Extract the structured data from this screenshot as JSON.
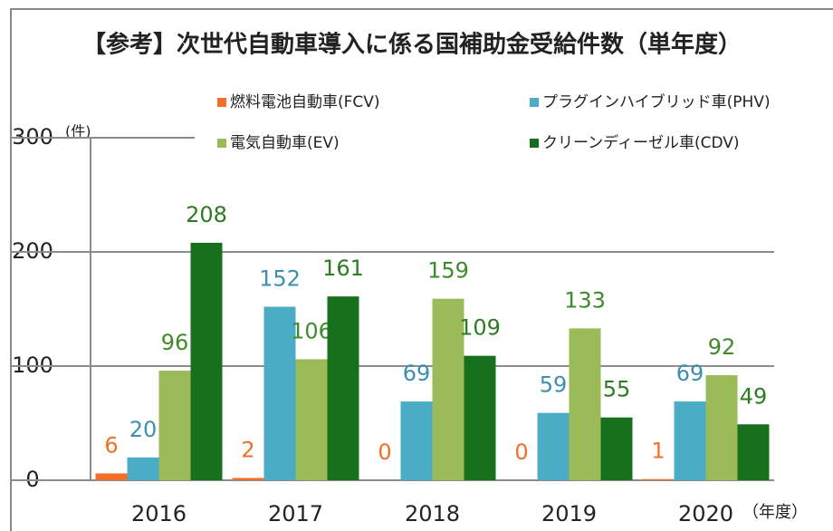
{
  "chart_data": {
    "type": "bar",
    "title": "【参考】次世代自動車導入に係る国補助金受給件数（単年度）",
    "ylabel": "(件)",
    "xlabel": "（年度）",
    "categories": [
      "2016",
      "2017",
      "2018",
      "2019",
      "2020"
    ],
    "series": [
      {
        "name": "燃料電池自動車(FCV)",
        "color": "#f07028",
        "label_color": "#f07028",
        "values": [
          6,
          2,
          0,
          0,
          1
        ]
      },
      {
        "name": "プラグインハイブリッド車(PHV)",
        "color": "#4bacc6",
        "label_color": "#3d8fb0",
        "values": [
          20,
          152,
          69,
          59,
          69
        ]
      },
      {
        "name": "電気自動車(EV)",
        "color": "#9bbb59",
        "label_color": "#3f8a2c",
        "values": [
          96,
          106,
          159,
          133,
          92
        ]
      },
      {
        "name": "クリーンディーゼル車(CDV)",
        "color": "#17701c",
        "label_color": "#2f7a25",
        "values": [
          208,
          161,
          109,
          55,
          49
        ]
      }
    ],
    "ylim": [
      0,
      300
    ],
    "yticks": [
      0,
      100,
      200,
      300
    ],
    "grid": true
  }
}
